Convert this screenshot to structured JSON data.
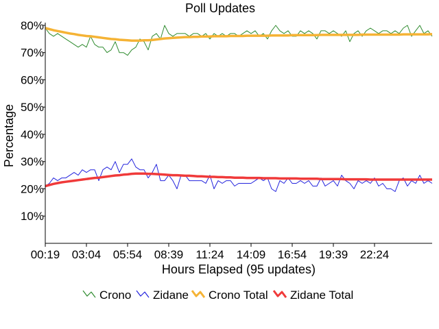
{
  "chart_data": {
    "type": "line",
    "title": "Poll Updates",
    "xlabel": "Hours Elapsed (95 updates)",
    "ylabel": "Percentage",
    "x_tick_labels": [
      "00:19",
      "03:04",
      "05:54",
      "08:39",
      "11:24",
      "14:09",
      "16:54",
      "19:39",
      "22:24"
    ],
    "y_ticks": [
      10,
      20,
      30,
      40,
      50,
      60,
      70,
      80
    ],
    "y_tick_labels": [
      "10%",
      "20%",
      "30%",
      "40%",
      "50%",
      "60%",
      "70%",
      "80%"
    ],
    "ylim": [
      0,
      81
    ],
    "xlim": [
      0,
      94
    ],
    "x_tick_positions": [
      0,
      10,
      20,
      30,
      40,
      50,
      60,
      70,
      80
    ],
    "grid": false,
    "legend_position": "bottom-center",
    "series": [
      {
        "name": "Crono",
        "color": "#2e8b2e",
        "values": [
          79,
          77,
          76,
          77,
          76,
          75,
          74,
          73,
          72,
          73,
          72,
          76,
          73,
          72,
          72,
          70,
          71,
          74,
          70,
          70,
          69,
          71,
          72,
          75,
          74,
          71,
          76,
          77,
          75,
          80,
          77,
          76,
          77,
          77,
          77,
          76,
          77,
          77,
          76,
          77,
          75,
          77,
          76,
          77,
          76,
          77,
          77,
          76,
          77,
          78,
          77,
          78,
          76,
          77,
          75,
          78,
          80,
          78,
          77,
          78,
          76,
          76,
          78,
          77,
          78,
          77,
          75,
          78,
          78,
          77,
          78,
          77,
          76,
          78,
          74,
          77,
          78,
          76,
          78,
          79,
          78,
          77,
          78,
          78,
          77,
          78,
          77,
          79,
          80,
          76,
          78,
          80,
          77,
          78,
          76
        ]
      },
      {
        "name": "Zidane",
        "color": "#2222dd",
        "values": [
          21,
          22,
          24,
          23,
          24,
          24,
          25,
          26,
          25,
          27,
          26,
          27,
          27,
          23,
          27,
          28,
          27,
          30,
          26,
          29,
          29,
          31,
          28,
          27,
          27,
          24,
          26,
          29,
          23,
          23,
          25,
          23,
          20,
          25,
          25,
          23,
          23,
          23,
          23,
          22,
          25,
          20,
          23,
          22,
          23,
          23,
          21,
          22,
          22,
          22,
          22,
          23,
          24,
          23,
          24,
          20,
          19,
          23,
          22,
          24,
          22,
          22,
          23,
          22,
          23,
          21,
          21,
          24,
          21,
          22,
          23,
          21,
          25,
          23,
          22,
          20,
          23,
          22,
          23,
          22,
          24,
          21,
          22,
          20,
          20,
          19,
          23,
          24,
          21,
          23,
          22,
          25,
          22,
          23,
          22
        ]
      },
      {
        "name": "Crono Total",
        "color": "#f5b335",
        "values": [
          79,
          78.6,
          78.2,
          77.9,
          77.6,
          77.3,
          77,
          76.8,
          76.5,
          76.3,
          76.1,
          76,
          75.8,
          75.6,
          75.4,
          75.2,
          75,
          74.9,
          74.7,
          74.6,
          74.5,
          74.4,
          74.4,
          74.4,
          74.5,
          74.5,
          74.6,
          74.8,
          75,
          75.2,
          75.3,
          75.4,
          75.5,
          75.6,
          75.7,
          75.7,
          75.8,
          75.8,
          75.9,
          75.9,
          75.9,
          76,
          76,
          76,
          76,
          76.1,
          76.1,
          76.1,
          76.1,
          76.2,
          76.2,
          76.2,
          76.2,
          76.2,
          76.2,
          76.3,
          76.3,
          76.3,
          76.3,
          76.3,
          76.4,
          76.4,
          76.4,
          76.4,
          76.4,
          76.4,
          76.4,
          76.5,
          76.5,
          76.5,
          76.5,
          76.5,
          76.5,
          76.5,
          76.5,
          76.5,
          76.5,
          76.6,
          76.6,
          76.6,
          76.6,
          76.6,
          76.6,
          76.6,
          76.6,
          76.6,
          76.6,
          76.7,
          76.7,
          76.7,
          76.7,
          76.7,
          76.7,
          76.7,
          76.8
        ]
      },
      {
        "name": "Zidane Total",
        "color": "#f03a3a",
        "values": [
          21,
          21.4,
          21.8,
          22.1,
          22.4,
          22.6,
          22.8,
          23,
          23.2,
          23.4,
          23.6,
          23.8,
          24,
          24.1,
          24.3,
          24.5,
          24.7,
          24.9,
          25,
          25.2,
          25.3,
          25.5,
          25.6,
          25.6,
          25.6,
          25.5,
          25.5,
          25.4,
          25.3,
          25.2,
          25.1,
          25,
          25,
          24.9,
          24.8,
          24.8,
          24.7,
          24.6,
          24.6,
          24.5,
          24.4,
          24.4,
          24.3,
          24.3,
          24.2,
          24.2,
          24.1,
          24.1,
          24.1,
          24,
          24,
          24,
          24,
          23.9,
          23.9,
          23.9,
          23.9,
          23.8,
          23.8,
          23.8,
          23.8,
          23.8,
          23.7,
          23.7,
          23.7,
          23.7,
          23.7,
          23.6,
          23.6,
          23.6,
          23.6,
          23.6,
          23.6,
          23.5,
          23.5,
          23.5,
          23.5,
          23.5,
          23.5,
          23.4,
          23.4,
          23.4,
          23.4,
          23.4,
          23.4,
          23.4,
          23.4,
          23.4,
          23.4,
          23.4,
          23.4,
          23.4,
          23.4,
          23.4,
          23.4
        ]
      }
    ]
  }
}
